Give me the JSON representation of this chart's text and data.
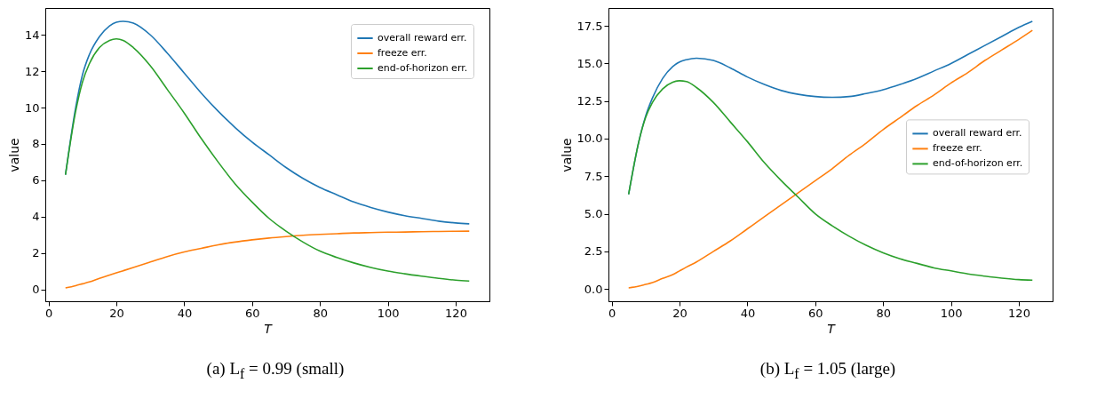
{
  "chart_data": [
    {
      "type": "line",
      "title": "(a) L$_{f}$ = 0.99 (small)",
      "xlabel": "T",
      "ylabel": "value",
      "legend": "top right",
      "x": [
        5,
        8,
        10,
        12,
        15,
        18,
        20,
        22,
        25,
        30,
        35,
        40,
        45,
        50,
        55,
        60,
        65,
        70,
        75,
        80,
        85,
        90,
        95,
        100,
        105,
        110,
        115,
        120,
        124
      ],
      "xlim": [
        -0.95,
        129.95
      ],
      "xticks": [
        0,
        20,
        40,
        60,
        80,
        100,
        120
      ],
      "ylim": [
        -0.66,
        15.48
      ],
      "yticks": [
        0,
        2,
        4,
        6,
        8,
        10,
        12,
        14
      ],
      "series": [
        {
          "name": "overall reward err.",
          "color": "#1f77b4",
          "values": [
            6.3,
            10,
            11.8,
            12.9,
            13.9,
            14.5,
            14.7,
            14.75,
            14.65,
            14.0,
            13.0,
            11.9,
            10.8,
            9.8,
            8.9,
            8.1,
            7.4,
            6.7,
            6.1,
            5.6,
            5.2,
            4.8,
            4.5,
            4.25,
            4.05,
            3.9,
            3.75,
            3.65,
            3.6
          ]
        },
        {
          "name": "freeze err.",
          "color": "#ff7f0e",
          "values": [
            0.07,
            0.2,
            0.3,
            0.4,
            0.6,
            0.78,
            0.9,
            1.02,
            1.2,
            1.5,
            1.8,
            2.05,
            2.25,
            2.45,
            2.6,
            2.72,
            2.82,
            2.9,
            2.97,
            3.02,
            3.06,
            3.1,
            3.12,
            3.14,
            3.15,
            3.17,
            3.18,
            3.19,
            3.2
          ]
        },
        {
          "name": "end-of-horizon err.",
          "color": "#2ca02c",
          "values": [
            6.3,
            9.8,
            11.4,
            12.4,
            13.3,
            13.7,
            13.78,
            13.7,
            13.3,
            12.3,
            11.0,
            9.7,
            8.3,
            7.0,
            5.8,
            4.8,
            3.9,
            3.2,
            2.6,
            2.1,
            1.75,
            1.45,
            1.2,
            1.0,
            0.85,
            0.72,
            0.6,
            0.5,
            0.45
          ]
        }
      ]
    },
    {
      "type": "line",
      "title": "(b) L$_{f}$ = 1.05 (large)",
      "xlabel": "T",
      "ylabel": "value",
      "legend": "right",
      "x": [
        5,
        8,
        10,
        12,
        15,
        18,
        20,
        22,
        25,
        30,
        35,
        40,
        45,
        50,
        55,
        60,
        65,
        70,
        75,
        80,
        85,
        90,
        95,
        100,
        105,
        110,
        115,
        120,
        124
      ],
      "xlim": [
        -0.95,
        129.95
      ],
      "xticks": [
        0,
        20,
        40,
        60,
        80,
        100,
        120
      ],
      "ylim": [
        -0.82,
        18.69
      ],
      "yticks": [
        {
          "value": 0,
          "label": "0.0"
        },
        {
          "value": 2.5,
          "label": "2.5"
        },
        {
          "value": 5,
          "label": "5.0"
        },
        {
          "value": 7.5,
          "label": "7.5"
        },
        {
          "value": 10,
          "label": "10.0"
        },
        {
          "value": 12.5,
          "label": "12.5"
        },
        {
          "value": 15,
          "label": "15.0"
        },
        {
          "value": 17.5,
          "label": "17.5"
        }
      ],
      "series": [
        {
          "name": "overall reward err.",
          "color": "#1f77b4",
          "values": [
            6.3,
            9.8,
            11.5,
            12.7,
            14.0,
            14.8,
            15.1,
            15.25,
            15.35,
            15.2,
            14.7,
            14.1,
            13.6,
            13.2,
            12.95,
            12.8,
            12.75,
            12.8,
            13.0,
            13.25,
            13.6,
            14.0,
            14.5,
            15.0,
            15.6,
            16.2,
            16.8,
            17.4,
            17.8
          ]
        },
        {
          "name": "freeze err.",
          "color": "#ff7f0e",
          "values": [
            0.07,
            0.18,
            0.3,
            0.42,
            0.7,
            0.95,
            1.2,
            1.45,
            1.8,
            2.5,
            3.2,
            4.0,
            4.8,
            5.6,
            6.4,
            7.2,
            8.0,
            8.9,
            9.7,
            10.6,
            11.4,
            12.2,
            12.9,
            13.7,
            14.4,
            15.2,
            15.9,
            16.6,
            17.2
          ]
        },
        {
          "name": "end-of-horizon err.",
          "color": "#2ca02c",
          "values": [
            6.3,
            9.8,
            11.4,
            12.4,
            13.3,
            13.75,
            13.85,
            13.8,
            13.4,
            12.4,
            11.1,
            9.8,
            8.4,
            7.2,
            6.1,
            5.0,
            4.2,
            3.5,
            2.9,
            2.4,
            2.0,
            1.7,
            1.4,
            1.2,
            1.0,
            0.85,
            0.72,
            0.62,
            0.58
          ]
        }
      ]
    }
  ]
}
